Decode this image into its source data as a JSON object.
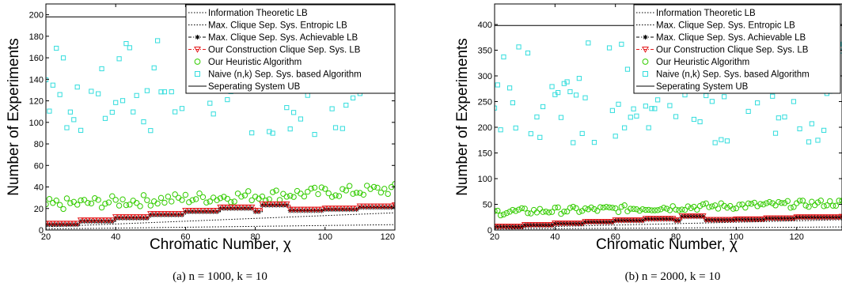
{
  "legend_entries": [
    {
      "label": "Information Theoretic LB",
      "marker": "none",
      "line": "dotted",
      "color": "#000000"
    },
    {
      "label": "Max. Clique Sep. Sys. Entropic LB",
      "marker": "none",
      "line": "dotted",
      "color": "#000000"
    },
    {
      "label": "Max. Clique Sep. Sys. Achievable LB",
      "marker": "asterisk",
      "line": "dashdot",
      "color": "#000000"
    },
    {
      "label": "Our Construction Clique Sep. Sys. LB",
      "marker": "triangle-down",
      "line": "dashdot",
      "color": "#e41a1c"
    },
    {
      "label": "Our Heuristic Algorithm",
      "marker": "circle",
      "line": "none",
      "color": "#33cc00"
    },
    {
      "label": "Naive (n,k) Sep. Sys. based Algorithm",
      "marker": "square",
      "line": "none",
      "color": "#33dddd"
    },
    {
      "label": "Seperating System UB",
      "marker": "none",
      "line": "solid",
      "color": "#000000"
    }
  ],
  "chart_data": [
    {
      "type": "scatter",
      "caption": "(a) n = 1000, k = 10",
      "xlabel": "Chromatic Number, χ",
      "ylabel": "Number of Experiments",
      "xlim": [
        20,
        120
      ],
      "ylim": [
        0,
        210
      ],
      "xticks": [
        20,
        40,
        60,
        80,
        100,
        120
      ],
      "yticks": [
        0,
        20,
        40,
        60,
        80,
        100,
        120,
        140,
        160,
        180,
        200
      ],
      "grid": false,
      "legend_position": "top-right",
      "separating_system_ub": 198,
      "information_theoretic_lb": [
        [
          20,
          1
        ],
        [
          120,
          5
        ]
      ],
      "entropic_lb": [
        [
          20,
          3
        ],
        [
          120,
          16
        ]
      ],
      "clique_achievable_lb_steps": [
        [
          20,
          5
        ],
        [
          30,
          8
        ],
        [
          40,
          11
        ],
        [
          50,
          14
        ],
        [
          60,
          17
        ],
        [
          70,
          20
        ],
        [
          80,
          17
        ],
        [
          82,
          23
        ],
        [
          90,
          18
        ],
        [
          100,
          19
        ],
        [
          110,
          21
        ],
        [
          120,
          22
        ]
      ],
      "construction_lb_steps": [
        [
          20,
          6
        ],
        [
          30,
          9
        ],
        [
          40,
          12
        ],
        [
          50,
          15
        ],
        [
          60,
          18
        ],
        [
          70,
          21
        ],
        [
          80,
          18
        ],
        [
          82,
          24
        ],
        [
          90,
          19
        ],
        [
          100,
          20
        ],
        [
          110,
          22
        ],
        [
          120,
          23
        ]
      ],
      "heuristic_range": [
        18,
        42
      ],
      "naive_range": [
        88,
        180
      ],
      "series_colors": {
        "heuristic": "#33cc00",
        "naive": "#33dddd",
        "construction": "#e41a1c"
      }
    },
    {
      "type": "scatter",
      "caption": "(b) n = 2000, k = 10",
      "xlabel": "Chromatic Number, χ",
      "ylabel": "Number of Experiments",
      "xlim": [
        20,
        135
      ],
      "ylim": [
        0,
        440
      ],
      "xticks": [
        20,
        40,
        60,
        80,
        100,
        120
      ],
      "yticks": [
        0,
        50,
        100,
        150,
        200,
        250,
        300,
        350,
        400
      ],
      "grid": false,
      "legend_position": "top-right",
      "separating_system_ub": 398,
      "information_theoretic_lb": [
        [
          20,
          2
        ],
        [
          135,
          6
        ]
      ],
      "entropic_lb": [
        [
          20,
          4
        ],
        [
          135,
          20
        ]
      ],
      "clique_achievable_lb_steps": [
        [
          20,
          6
        ],
        [
          30,
          9
        ],
        [
          40,
          12
        ],
        [
          50,
          15
        ],
        [
          60,
          18
        ],
        [
          70,
          21
        ],
        [
          80,
          18
        ],
        [
          82,
          26
        ],
        [
          90,
          19
        ],
        [
          100,
          20
        ],
        [
          110,
          22
        ],
        [
          120,
          24
        ],
        [
          135,
          25
        ]
      ],
      "construction_lb_steps": [
        [
          20,
          7
        ],
        [
          30,
          10
        ],
        [
          40,
          13
        ],
        [
          50,
          16
        ],
        [
          60,
          19
        ],
        [
          70,
          22
        ],
        [
          80,
          19
        ],
        [
          82,
          27
        ],
        [
          90,
          20
        ],
        [
          100,
          21
        ],
        [
          110,
          23
        ],
        [
          120,
          25
        ],
        [
          135,
          26
        ]
      ],
      "heuristic_range": [
        28,
        58
      ],
      "naive_range": [
        170,
        372
      ],
      "series_colors": {
        "heuristic": "#33cc00",
        "naive": "#33dddd",
        "construction": "#e41a1c"
      }
    }
  ]
}
